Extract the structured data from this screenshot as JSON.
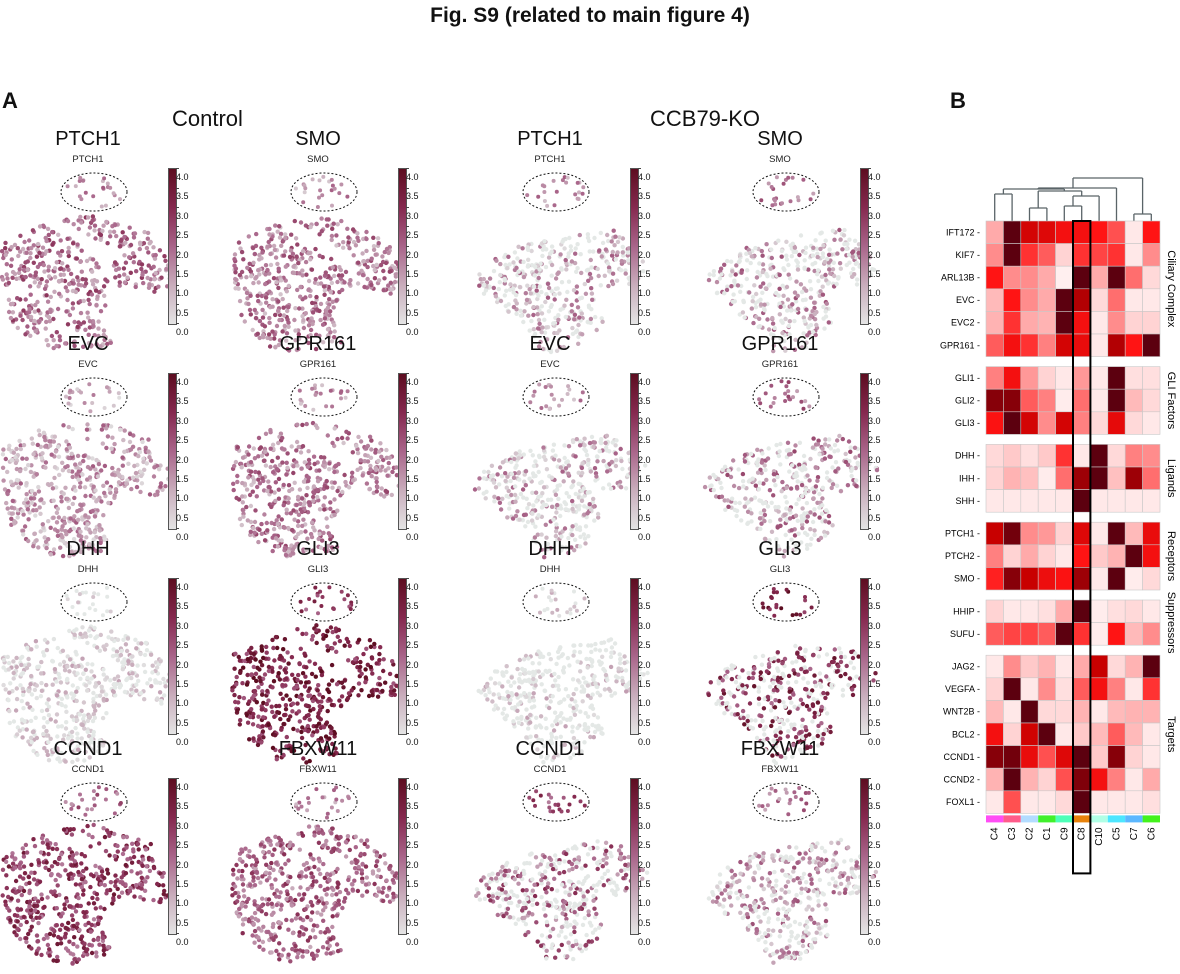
{
  "figure": {
    "title": "Fig. S9 (related to main figure 4)",
    "panel_a_label": "A",
    "panel_b_label": "B"
  },
  "panel_a": {
    "conditions": [
      "Control",
      "CCB79-KO"
    ],
    "colorbar": {
      "min": 0.0,
      "max": 4.0,
      "ticks": [
        "4.0",
        "3.5",
        "3.0",
        "2.5",
        "2.0",
        "1.5",
        "1.0",
        "0.5",
        "0.0"
      ],
      "colormap_low": "#e4e4e4",
      "colormap_high": "#5c0d20"
    },
    "genes": [
      "PTCH1",
      "SMO",
      "EVC",
      "GPR161",
      "DHH",
      "GLI3",
      "CCND1",
      "FBXW11"
    ],
    "plots": [
      {
        "condition": "Control",
        "gene": "PTCH1",
        "intensity": 0.45
      },
      {
        "condition": "Control",
        "gene": "SMO",
        "intensity": 0.4
      },
      {
        "condition": "Control",
        "gene": "EVC",
        "intensity": 0.3
      },
      {
        "condition": "Control",
        "gene": "GPR161",
        "intensity": 0.4
      },
      {
        "condition": "Control",
        "gene": "DHH",
        "intensity": 0.05
      },
      {
        "condition": "Control",
        "gene": "GLI3",
        "intensity": 0.8
      },
      {
        "condition": "Control",
        "gene": "CCND1",
        "intensity": 0.65
      },
      {
        "condition": "Control",
        "gene": "FBXW11",
        "intensity": 0.5
      },
      {
        "condition": "CCB79-KO",
        "gene": "PTCH1",
        "intensity": 0.3
      },
      {
        "condition": "CCB79-KO",
        "gene": "SMO",
        "intensity": 0.35
      },
      {
        "condition": "CCB79-KO",
        "gene": "EVC",
        "intensity": 0.28
      },
      {
        "condition": "CCB79-KO",
        "gene": "GPR161",
        "intensity": 0.38
      },
      {
        "condition": "CCB79-KO",
        "gene": "DHH",
        "intensity": 0.06
      },
      {
        "condition": "CCB79-KO",
        "gene": "GLI3",
        "intensity": 0.7
      },
      {
        "condition": "CCB79-KO",
        "gene": "CCND1",
        "intensity": 0.5
      },
      {
        "condition": "CCB79-KO",
        "gene": "FBXW11",
        "intensity": 0.35
      }
    ]
  },
  "chart_data": {
    "type": "heatmap",
    "title": "",
    "columns": [
      "C4",
      "C3",
      "C2",
      "C1",
      "C9",
      "C8",
      "C10",
      "C5",
      "C7",
      "C6"
    ],
    "column_colors": [
      "#ff4df5",
      "#ff5c8a",
      "#b3dcff",
      "#41f02c",
      "#4dffb8",
      "#e8820a",
      "#b0ffe6",
      "#4de6ff",
      "#5cb8ff",
      "#44f21c"
    ],
    "highlighted_column": "C8",
    "scale": "relative expression (0 = white, 0.5 = red, 1 = dark maroon)",
    "groups": [
      {
        "name": "Ciliary Complex",
        "rows": [
          "IFT172",
          "KIF7",
          "ARL13B",
          "EVC",
          "EVC2",
          "GPR161"
        ]
      },
      {
        "name": "GLI Factors",
        "rows": [
          "GLI1",
          "GLI2",
          "GLI3"
        ]
      },
      {
        "name": "Ligands",
        "rows": [
          "DHH",
          "IHH",
          "SHH"
        ]
      },
      {
        "name": "Receptors",
        "rows": [
          "PTCH1",
          "PTCH2",
          "SMO"
        ]
      },
      {
        "name": "Suppressors",
        "rows": [
          "HHIP",
          "SUFU"
        ]
      },
      {
        "name": "Targets",
        "rows": [
          "JAG2",
          "VEGFA",
          "WNT2B",
          "BCL2",
          "CCND1",
          "CCND2",
          "FOXL1"
        ]
      }
    ],
    "values": {
      "IFT172": [
        0.25,
        1.0,
        0.7,
        0.65,
        0.55,
        0.55,
        0.5,
        0.4,
        0.05,
        0.5
      ],
      "KIF7": [
        0.3,
        1.0,
        0.45,
        0.38,
        0.12,
        0.45,
        0.42,
        0.45,
        0.05,
        0.3
      ],
      "ARL13B": [
        0.5,
        0.3,
        0.3,
        0.25,
        0.03,
        1.0,
        0.25,
        1.0,
        0.35,
        0.1
      ],
      "EVC": [
        0.2,
        0.5,
        0.3,
        0.25,
        1.0,
        0.8,
        0.1,
        0.35,
        0.05,
        0.05
      ],
      "EVC2": [
        0.22,
        0.45,
        0.25,
        0.22,
        1.0,
        0.55,
        0.05,
        0.3,
        0.12,
        0.12
      ],
      "GPR161": [
        0.38,
        0.55,
        0.45,
        0.32,
        0.7,
        0.6,
        0.05,
        0.8,
        0.5,
        1.0
      ],
      "GLI1": [
        0.32,
        0.55,
        0.28,
        0.12,
        0.05,
        0.28,
        0.05,
        1.0,
        0.08,
        0.08
      ],
      "GLI2": [
        0.9,
        0.9,
        0.38,
        0.32,
        0.04,
        0.35,
        0.05,
        1.0,
        0.2,
        0.1
      ],
      "GLI3": [
        0.52,
        1.0,
        0.7,
        0.3,
        0.7,
        0.32,
        0.1,
        0.62,
        0.1,
        0.05
      ],
      "DHH": [
        0.1,
        0.15,
        0.08,
        0.15,
        0.45,
        0.05,
        1.0,
        0.1,
        0.32,
        0.3
      ],
      "IHH": [
        0.12,
        0.22,
        0.18,
        0.04,
        0.35,
        0.85,
        1.0,
        0.18,
        0.85,
        0.35
      ],
      "SHH": [
        0.05,
        0.05,
        0.05,
        0.05,
        0.05,
        1.0,
        0.05,
        0.05,
        0.05,
        0.05
      ],
      "PTCH1": [
        0.75,
        0.95,
        0.3,
        0.28,
        0.12,
        0.65,
        0.05,
        1.0,
        0.2,
        0.6
      ],
      "PTCH2": [
        0.32,
        0.12,
        0.25,
        0.12,
        0.05,
        0.5,
        0.15,
        0.22,
        1.0,
        0.55
      ],
      "SMO": [
        0.48,
        0.9,
        0.75,
        0.58,
        0.52,
        0.85,
        0.05,
        1.0,
        0.04,
        0.1
      ],
      "HHIP": [
        0.12,
        0.05,
        0.05,
        0.08,
        0.25,
        1.0,
        0.04,
        0.08,
        0.1,
        0.05
      ],
      "SUFU": [
        0.38,
        0.42,
        0.42,
        0.38,
        1.0,
        0.45,
        0.04,
        0.5,
        0.2,
        0.3
      ],
      "JAG2": [
        0.05,
        0.3,
        0.15,
        0.22,
        0.05,
        0.25,
        0.75,
        0.1,
        0.22,
        1.0
      ],
      "VEGFA": [
        0.12,
        1.0,
        0.05,
        0.3,
        0.08,
        0.38,
        0.55,
        0.32,
        0.05,
        0.45
      ],
      "WNT2B": [
        0.2,
        0.05,
        1.0,
        0.1,
        0.1,
        0.22,
        0.05,
        0.2,
        0.22,
        0.22
      ],
      "BCL2": [
        0.55,
        0.12,
        0.72,
        1.0,
        0.05,
        0.15,
        0.2,
        0.38,
        0.2,
        0.05
      ],
      "CCND1": [
        0.9,
        0.95,
        0.6,
        0.4,
        0.65,
        1.0,
        0.15,
        0.9,
        0.12,
        0.05
      ],
      "CCND2": [
        0.22,
        1.0,
        0.22,
        0.12,
        0.4,
        0.92,
        0.55,
        0.32,
        0.05,
        0.25
      ],
      "FOXL1": [
        0.05,
        0.4,
        0.05,
        0.05,
        0.1,
        1.0,
        0.05,
        0.05,
        0.05,
        0.08
      ]
    }
  }
}
